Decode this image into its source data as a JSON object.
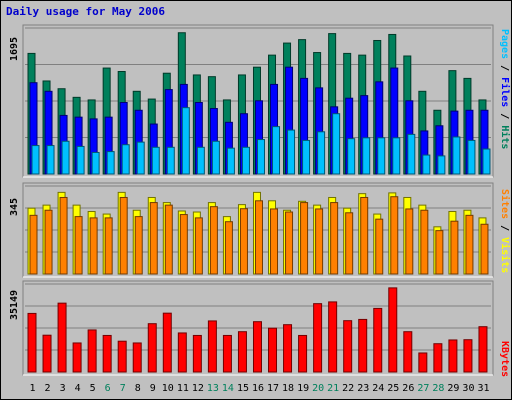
{
  "title": "Daily usage for May 2006",
  "colors": {
    "hits": "#00805c",
    "files": "#0000ff",
    "pages": "#00c0ff",
    "visits": "#ffff00",
    "sites": "#ff8000",
    "kbytes": "#ff0000",
    "weekend_label": "#00805c",
    "weekday_label": "#000000"
  },
  "chart_data": [
    {
      "type": "bar",
      "title": "Daily usage for May 2006",
      "categories": [
        "1",
        "2",
        "3",
        "4",
        "5",
        "6",
        "7",
        "8",
        "9",
        "10",
        "11",
        "12",
        "13",
        "14",
        "15",
        "16",
        "17",
        "18",
        "19",
        "20",
        "21",
        "22",
        "23",
        "24",
        "25",
        "26",
        "27",
        "28",
        "29",
        "30",
        "31"
      ],
      "weekend_days": [
        "6",
        "7",
        "13",
        "14",
        "20",
        "21",
        "27",
        "28"
      ],
      "ymax_label": "1695",
      "ylim": [
        0,
        1695
      ],
      "legend": [
        "Pages",
        "Files",
        "Hits"
      ],
      "legend_separator": " / ",
      "series": [
        {
          "name": "Hits",
          "values": [
            1400,
            1080,
            990,
            890,
            860,
            1230,
            1190,
            960,
            870,
            1170,
            1640,
            1150,
            1130,
            860,
            1150,
            1240,
            1380,
            1520,
            1560,
            1410,
            1630,
            1400,
            1380,
            1550,
            1620,
            1370,
            960,
            740,
            1200,
            1110,
            860
          ]
        },
        {
          "name": "Files",
          "values": [
            1060,
            960,
            680,
            660,
            640,
            660,
            830,
            740,
            580,
            980,
            1040,
            830,
            760,
            600,
            700,
            850,
            1040,
            1240,
            1110,
            1000,
            780,
            880,
            910,
            1070,
            1230,
            850,
            500,
            560,
            730,
            740,
            740
          ]
        },
        {
          "name": "Pages",
          "values": [
            330,
            330,
            380,
            320,
            250,
            260,
            340,
            370,
            310,
            310,
            770,
            310,
            380,
            300,
            310,
            400,
            550,
            510,
            390,
            490,
            700,
            410,
            420,
            420,
            420,
            460,
            220,
            210,
            430,
            390,
            290
          ]
        }
      ]
    },
    {
      "type": "bar",
      "categories": [
        "1",
        "2",
        "3",
        "4",
        "5",
        "6",
        "7",
        "8",
        "9",
        "10",
        "11",
        "12",
        "13",
        "14",
        "15",
        "16",
        "17",
        "18",
        "19",
        "20",
        "21",
        "22",
        "23",
        "24",
        "25",
        "26",
        "27",
        "28",
        "29",
        "30",
        "31"
      ],
      "ymax_label": "345",
      "ylim": [
        0,
        345
      ],
      "legend": [
        "Sites",
        "Visits"
      ],
      "legend_separator": " / ",
      "series": [
        {
          "name": "Visits",
          "values": [
            258,
            270,
            320,
            270,
            245,
            235,
            320,
            250,
            300,
            280,
            247,
            243,
            280,
            225,
            272,
            320,
            287,
            250,
            285,
            270,
            300,
            258,
            315,
            235,
            318,
            300,
            270,
            185,
            245,
            250,
            220
          ]
        },
        {
          "name": "Sites",
          "values": [
            230,
            250,
            300,
            225,
            220,
            220,
            300,
            225,
            280,
            270,
            233,
            220,
            264,
            205,
            256,
            287,
            255,
            243,
            280,
            255,
            280,
            240,
            300,
            215,
            303,
            255,
            250,
            170,
            207,
            230,
            195
          ]
        }
      ]
    },
    {
      "type": "bar",
      "categories": [
        "1",
        "2",
        "3",
        "4",
        "5",
        "6",
        "7",
        "8",
        "9",
        "10",
        "11",
        "12",
        "13",
        "14",
        "15",
        "16",
        "17",
        "18",
        "19",
        "20",
        "21",
        "22",
        "23",
        "24",
        "25",
        "26",
        "27",
        "28",
        "29",
        "30",
        "31"
      ],
      "ymax_label": "35149",
      "ylim": [
        0,
        35149
      ],
      "legend": [
        "KBytes"
      ],
      "legend_separator": " / ",
      "series": [
        {
          "name": "KBytes",
          "values": [
            23400,
            14700,
            27500,
            11600,
            16800,
            14600,
            12300,
            11600,
            19300,
            23500,
            15600,
            14600,
            20400,
            14600,
            16100,
            20100,
            17500,
            18900,
            14600,
            27300,
            28000,
            20500,
            21000,
            25400,
            33600,
            16100,
            7600,
            11300,
            12800,
            12900,
            18100
          ]
        }
      ]
    }
  ]
}
